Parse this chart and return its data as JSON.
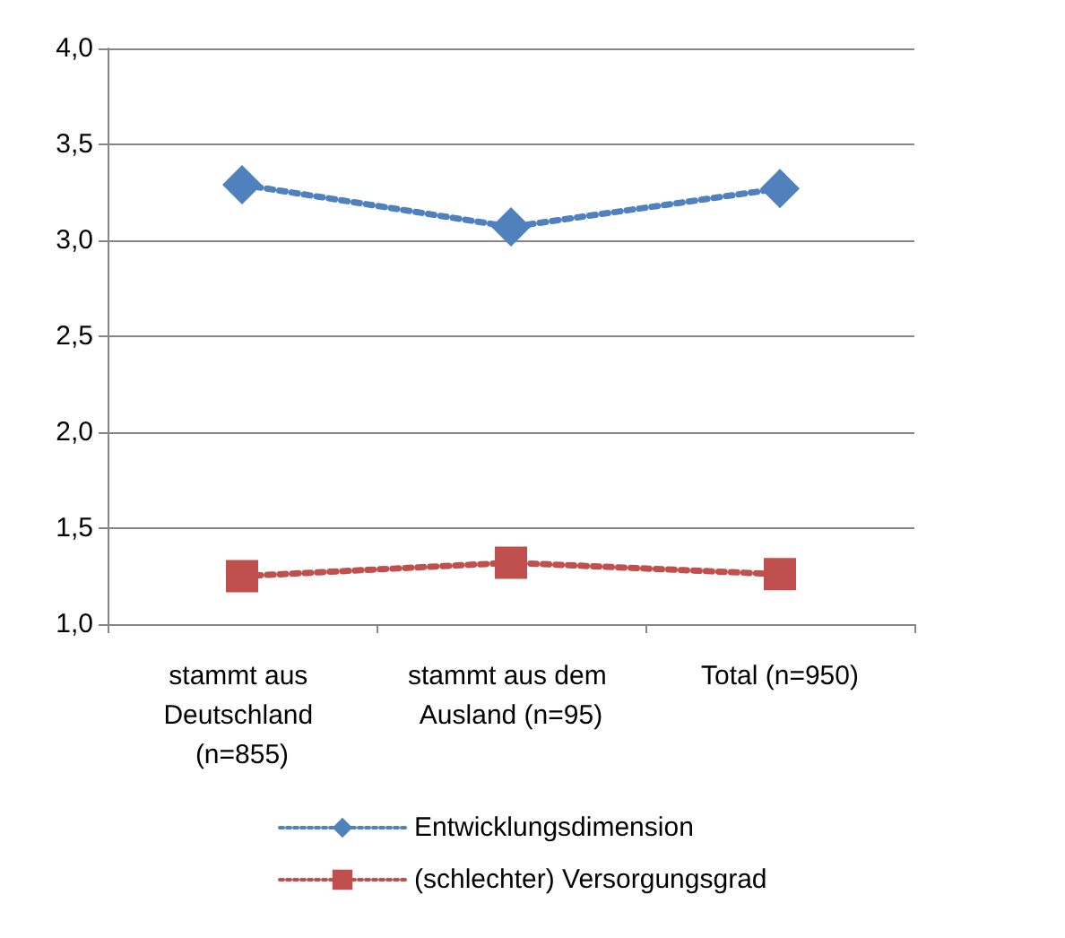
{
  "chart_data": {
    "type": "line",
    "categories": [
      "stammt aus Deutschland (n=855)",
      "stammt aus dem Ausland (n=95)",
      "Total (n=950)"
    ],
    "series": [
      {
        "name": "Entwicklungsdimension",
        "color": "#4f81bd",
        "values": [
          3.29,
          3.07,
          3.27
        ],
        "marker": "diamond"
      },
      {
        "name": "(schlechter) Versorgungsgrad",
        "color": "#c0504d",
        "values": [
          1.25,
          1.32,
          1.26
        ],
        "marker": "square"
      }
    ],
    "ylim": [
      1.0,
      4.0
    ],
    "yticks": [
      {
        "value": 1.0,
        "label": "1,0"
      },
      {
        "value": 1.5,
        "label": "1,5"
      },
      {
        "value": 2.0,
        "label": "2,0"
      },
      {
        "value": 2.5,
        "label": "2,5"
      },
      {
        "value": 3.0,
        "label": "3,0"
      },
      {
        "value": 3.5,
        "label": "3,5"
      },
      {
        "value": 4.0,
        "label": "4,0"
      }
    ],
    "grid": "y",
    "legend": "bottom",
    "line_style": "dotted"
  }
}
